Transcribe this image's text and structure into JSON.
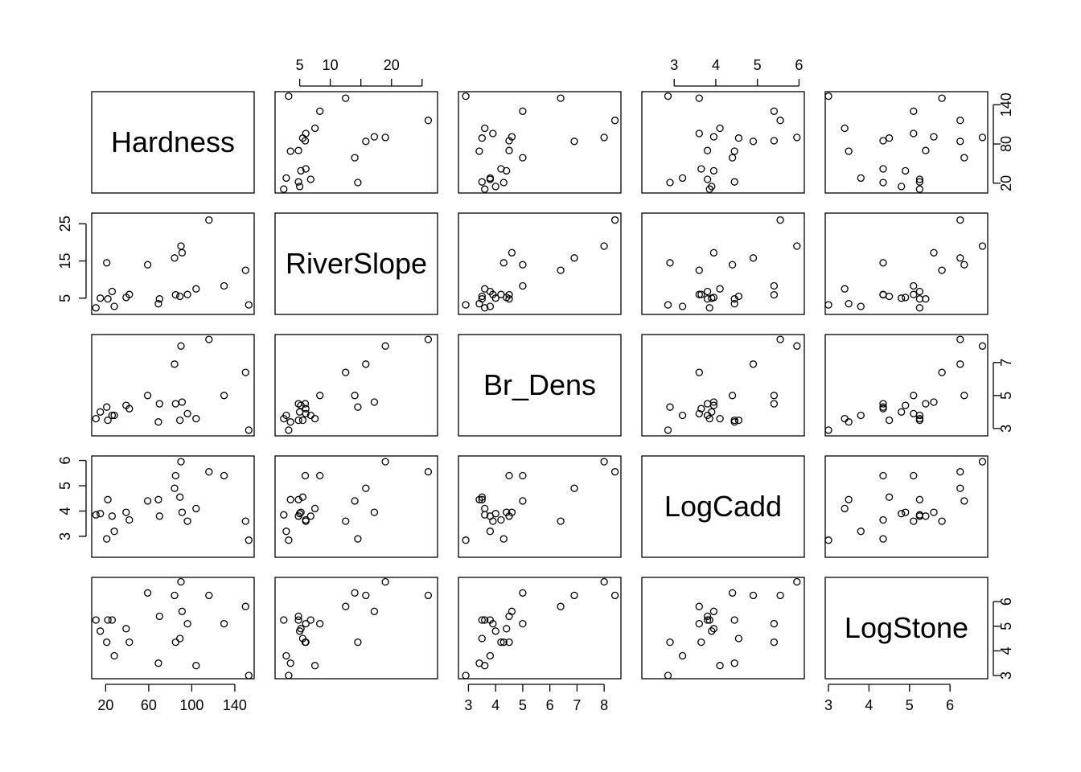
{
  "chart_data": {
    "type": "scatter",
    "variables": [
      "Hardness",
      "RiverSlope",
      "Br_Dens",
      "LogCadd",
      "LogStone"
    ],
    "points": [
      [
        11,
        2.4,
        3.6,
        3.85,
        5.25
      ],
      [
        15,
        5.0,
        4.0,
        3.9,
        4.8
      ],
      [
        21,
        14.5,
        4.3,
        2.9,
        4.35
      ],
      [
        22,
        4.8,
        3.5,
        4.45,
        5.25
      ],
      [
        26,
        6.8,
        3.8,
        3.8,
        5.25
      ],
      [
        28,
        2.8,
        3.8,
        3.2,
        3.8
      ],
      [
        39,
        5.2,
        4.4,
        3.95,
        4.9
      ],
      [
        42,
        6.0,
        4.2,
        3.65,
        4.35
      ],
      [
        59,
        14.0,
        5.0,
        4.4,
        6.35
      ],
      [
        69,
        3.5,
        3.4,
        4.45,
        3.5
      ],
      [
        70,
        4.8,
        4.5,
        3.8,
        5.4
      ],
      [
        84,
        15.8,
        6.9,
        4.9,
        6.25
      ],
      [
        85,
        5.9,
        4.5,
        5.4,
        4.35
      ],
      [
        89,
        5.5,
        3.5,
        4.55,
        4.5
      ],
      [
        90,
        19.0,
        8.0,
        5.95,
        6.8
      ],
      [
        91,
        17.2,
        4.6,
        3.95,
        5.6
      ],
      [
        96,
        6.0,
        3.9,
        3.6,
        5.1
      ],
      [
        104,
        7.5,
        3.6,
        4.1,
        3.4
      ],
      [
        116,
        26.0,
        8.4,
        5.55,
        6.25
      ],
      [
        130,
        8.3,
        5.0,
        5.4,
        5.1
      ],
      [
        150,
        12.5,
        6.4,
        3.6,
        5.8
      ],
      [
        153,
        3.2,
        2.9,
        2.85,
        3.0
      ]
    ],
    "axes": {
      "Hardness": {
        "range": [
          10,
          155
        ],
        "ticks": [
          20,
          60,
          100,
          140
        ],
        "ticklabels": [
          "20",
          "60",
          "100",
          "140"
        ],
        "tickside": "bottom"
      },
      "RiverSlope": {
        "range": [
          1.5,
          27
        ],
        "ticks": [
          5,
          10,
          15,
          20,
          25
        ],
        "ticklabels": [
          "5",
          "10",
          "20"
        ],
        "label_ticks": [
          5,
          10,
          20
        ],
        "tickside": "top",
        "ticks_left": [
          5,
          15,
          25
        ]
      },
      "Br_Dens": {
        "range": [
          2.75,
          8.5
        ],
        "ticks": [
          3,
          4,
          5,
          6,
          7,
          8
        ],
        "ticklabels": [
          "3",
          "4",
          "5",
          "6",
          "7",
          "8"
        ],
        "tickside": "bottom",
        "ticks_right": [
          3,
          5,
          7
        ]
      },
      "LogCadd": {
        "range": [
          2.3,
          6.05
        ],
        "ticks": [
          3,
          4,
          5,
          6
        ],
        "ticklabels": [
          "3",
          "4",
          "5",
          "6"
        ],
        "tickside": "top",
        "ticks_left": [
          3,
          4,
          5,
          6
        ]
      },
      "LogStone": {
        "range": [
          3,
          6.85
        ],
        "ticks": [
          3,
          4,
          5,
          6
        ],
        "ticklabels": [
          "3",
          "4",
          "5",
          "6"
        ],
        "tickside": "bottom",
        "ticks_right": [
          3,
          4,
          5,
          6
        ]
      }
    },
    "grid": false,
    "legend": "none"
  },
  "colors": {
    "ink": "#000000",
    "background": "#ffffff"
  }
}
